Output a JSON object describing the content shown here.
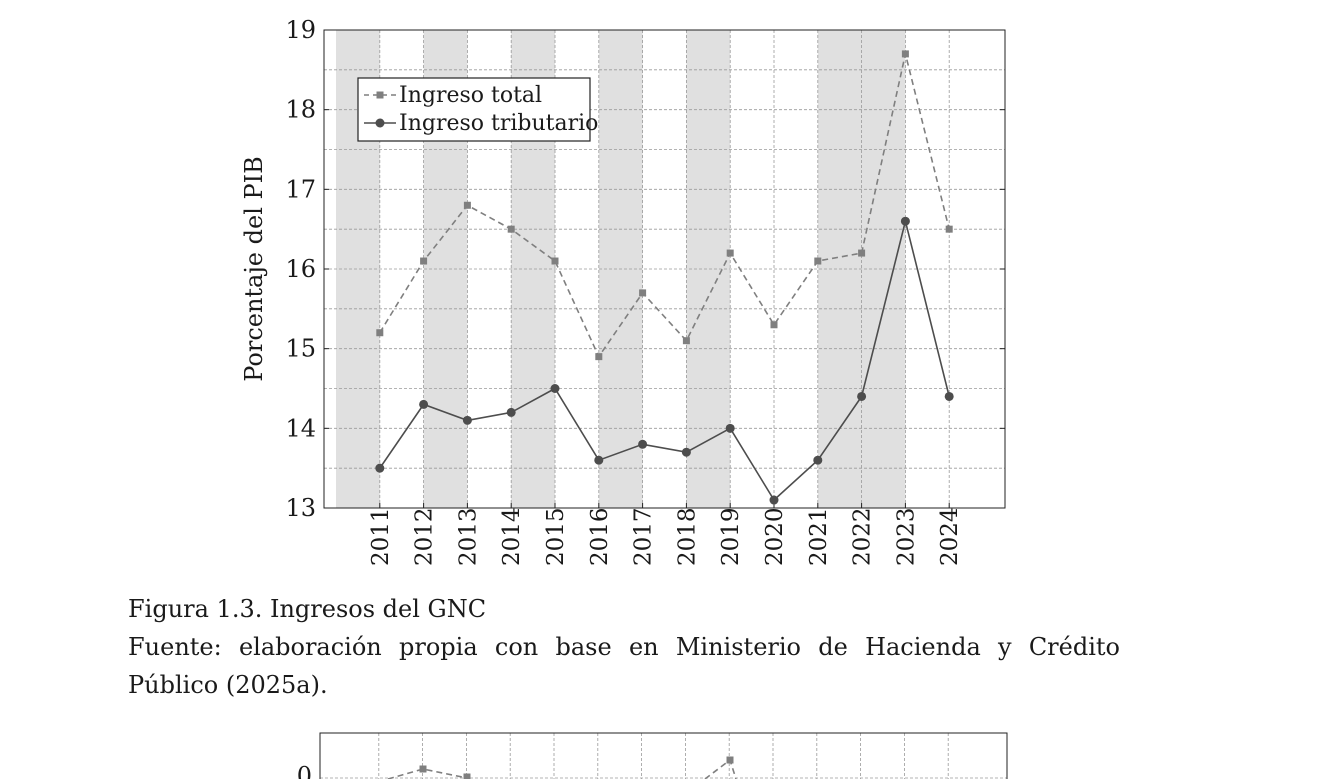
{
  "chart_data": [
    {
      "type": "line",
      "ylabel": "Porcentaje del PIB",
      "ylim": [
        13,
        19
      ],
      "yticks": [
        13,
        14,
        15,
        16,
        17,
        18,
        19
      ],
      "categories": [
        "2011",
        "2012",
        "2013",
        "2014",
        "2015",
        "2016",
        "2017",
        "2018",
        "2019",
        "2020",
        "2021",
        "2022",
        "2023",
        "2024"
      ],
      "shaded_periods": [
        [
          "2010",
          "2011"
        ],
        [
          "2012",
          "2013"
        ],
        [
          "2014",
          "2015"
        ],
        [
          "2016",
          "2017"
        ],
        [
          "2018",
          "2019"
        ],
        [
          "2021",
          "2023"
        ]
      ],
      "grid": true,
      "legend_position": "top-left",
      "series": [
        {
          "name": "Ingreso total",
          "style": "dashed",
          "marker": "square",
          "color": "#7f7f7f",
          "values": [
            15.2,
            16.1,
            16.8,
            16.5,
            16.1,
            14.9,
            15.7,
            15.1,
            16.2,
            15.3,
            16.1,
            16.2,
            18.7,
            16.5
          ]
        },
        {
          "name": "Ingreso tributario",
          "style": "solid",
          "marker": "circle",
          "color": "#4d4d4d",
          "values": [
            13.5,
            14.3,
            14.1,
            14.2,
            14.5,
            13.6,
            13.8,
            13.7,
            14.0,
            13.1,
            13.6,
            14.4,
            16.6,
            14.4
          ]
        }
      ]
    },
    {
      "type": "line",
      "partial": true,
      "yticks_visible": [
        "0"
      ],
      "points_visible": [
        {
          "x": "2012",
          "label": "0.1"
        },
        {
          "x": "2019",
          "label": "0.2"
        }
      ]
    }
  ],
  "caption": {
    "title": "Figura 1.3. Ingresos del GNC",
    "source": "Fuente: elaboración propia con base en Ministerio de Hacienda y Crédito Público (2025a)."
  }
}
